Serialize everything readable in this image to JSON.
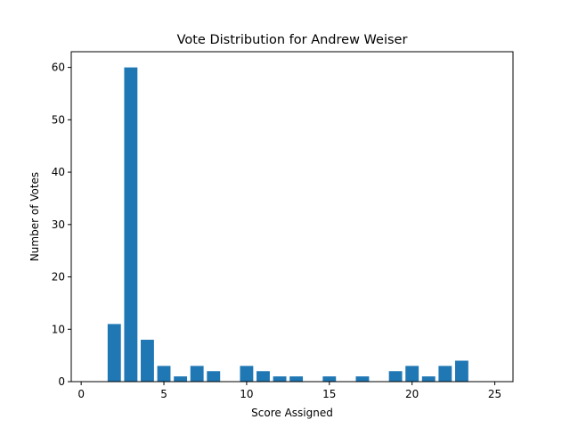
{
  "chart_data": {
    "type": "bar",
    "title": "Vote Distribution for Andrew Weiser",
    "xlabel": "Score Assigned",
    "ylabel": "Number of Votes",
    "xlim": [
      -0.6,
      26.1
    ],
    "ylim": [
      0,
      63
    ],
    "xticks": [
      0,
      5,
      10,
      15,
      20,
      25
    ],
    "yticks": [
      0,
      10,
      20,
      30,
      40,
      50,
      60
    ],
    "grid": false,
    "color": "#1f77b4",
    "x": [
      2,
      3,
      4,
      5,
      6,
      7,
      8,
      10,
      11,
      12,
      13,
      15,
      17,
      19,
      20,
      21,
      22,
      23
    ],
    "values": [
      11,
      60,
      8,
      3,
      1,
      3,
      2,
      3,
      2,
      1,
      1,
      1,
      1,
      2,
      3,
      1,
      3,
      4
    ]
  }
}
